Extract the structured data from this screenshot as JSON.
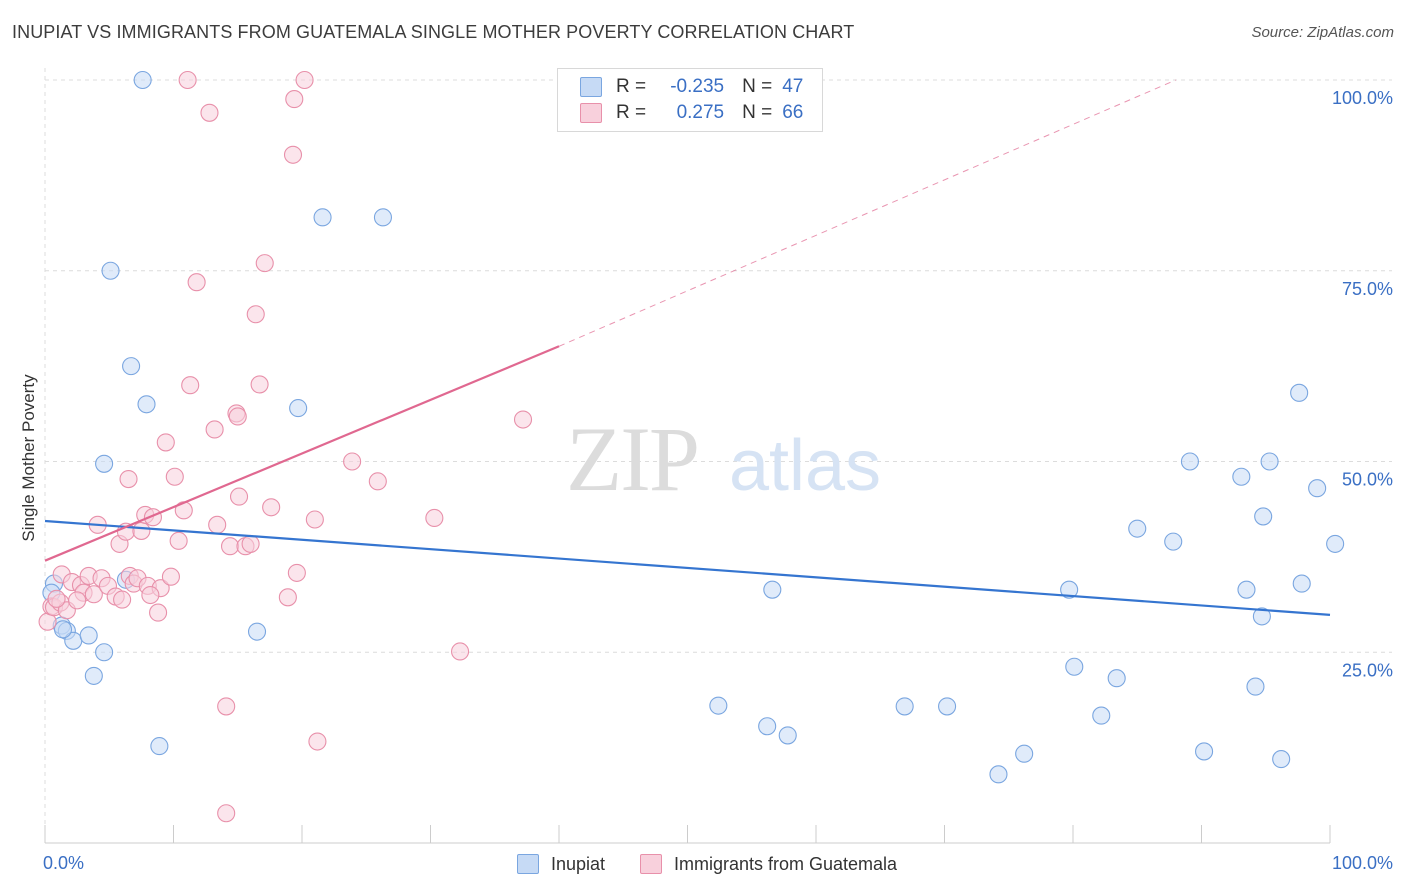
{
  "title": "INUPIAT VS IMMIGRANTS FROM GUATEMALA SINGLE MOTHER POVERTY CORRELATION CHART",
  "source": "Source: ZipAtlas.com",
  "watermark": {
    "zip": "ZIP",
    "atlas": "atlas"
  },
  "colors": {
    "inupiat_fill": "#c6daf5",
    "inupiat_stroke": "#7aa6e0",
    "inupiat_line": "#3575d0",
    "guatemala_fill": "#f8d0dc",
    "guatemala_stroke": "#e890aa",
    "guatemala_line": "#e06890",
    "axis_label": "#3a6fc4",
    "grid": "#dcdcdc"
  },
  "legend": {
    "rows": [
      {
        "r_label": "R =",
        "r_value": "-0.235",
        "n_label": "N =",
        "n_value": "47"
      },
      {
        "r_label": "R =",
        "r_value": "0.275",
        "n_label": "N =",
        "n_value": "66"
      }
    ]
  },
  "bottom_legend": [
    "Inupiat",
    "Immigrants from Guatemala"
  ],
  "chart_data": {
    "type": "scatter",
    "xlabel": "",
    "ylabel": "Single Mother Poverty",
    "xlim": [
      0,
      100
    ],
    "ylim": [
      0,
      100
    ],
    "x_tick_labels": [
      {
        "value": 0,
        "label": "0.0%"
      },
      {
        "value": 100,
        "label": "100.0%"
      }
    ],
    "y_tick_labels": [
      {
        "value": 25,
        "label": "25.0%"
      },
      {
        "value": 50,
        "label": "50.0%"
      },
      {
        "value": 75,
        "label": "75.0%"
      },
      {
        "value": 100,
        "label": "100.0%"
      }
    ],
    "grid": true,
    "series": [
      {
        "name": "Inupiat",
        "points": [
          [
            0.7,
            34
          ],
          [
            0.5,
            32.8
          ],
          [
            1.3,
            28.5
          ],
          [
            1.7,
            27.8
          ],
          [
            2.2,
            26.5
          ],
          [
            3.4,
            27.2
          ],
          [
            3.8,
            21.9
          ],
          [
            4.6,
            25
          ],
          [
            4.6,
            49.7
          ],
          [
            5.1,
            75
          ],
          [
            6.3,
            34.5
          ],
          [
            6.7,
            62.5
          ],
          [
            7.6,
            100
          ],
          [
            7.9,
            57.5
          ],
          [
            8.9,
            12.7
          ],
          [
            16.5,
            27.7
          ],
          [
            19.7,
            57
          ],
          [
            21.6,
            82
          ],
          [
            26.3,
            82
          ],
          [
            52.4,
            18
          ],
          [
            56.2,
            15.3
          ],
          [
            57.8,
            14.1
          ],
          [
            56.6,
            33.2
          ],
          [
            66.9,
            17.9
          ],
          [
            70.2,
            17.9
          ],
          [
            74.2,
            9
          ],
          [
            76.2,
            11.7
          ],
          [
            79.7,
            33.2
          ],
          [
            80.1,
            23.1
          ],
          [
            82.2,
            16.7
          ],
          [
            83.4,
            21.6
          ],
          [
            85,
            41.2
          ],
          [
            87.8,
            39.5
          ],
          [
            89.1,
            50
          ],
          [
            90.2,
            12
          ],
          [
            93.1,
            48
          ],
          [
            93.5,
            33.2
          ],
          [
            94.2,
            20.5
          ],
          [
            94.7,
            29.7
          ],
          [
            94.8,
            42.8
          ],
          [
            95.3,
            50
          ],
          [
            96.2,
            11
          ],
          [
            97.6,
            59
          ],
          [
            97.8,
            34
          ],
          [
            99,
            46.5
          ],
          [
            100.4,
            39.2
          ],
          [
            1.4,
            28
          ]
        ]
      },
      {
        "name": "Immigrants from Guatemala",
        "points": [
          [
            0.2,
            29
          ],
          [
            0.5,
            31
          ],
          [
            0.7,
            30.9
          ],
          [
            1.2,
            31.5
          ],
          [
            1.3,
            35.2
          ],
          [
            1.7,
            30.5
          ],
          [
            2.1,
            34.2
          ],
          [
            2.8,
            33.8
          ],
          [
            3,
            32.8
          ],
          [
            3.4,
            35
          ],
          [
            3.8,
            32.6
          ],
          [
            4.1,
            41.7
          ],
          [
            4.4,
            34.7
          ],
          [
            4.9,
            33.7
          ],
          [
            5.5,
            32.3
          ],
          [
            5.8,
            39.2
          ],
          [
            6,
            31.9
          ],
          [
            6.3,
            40.8
          ],
          [
            6.5,
            47.7
          ],
          [
            6.6,
            35
          ],
          [
            6.9,
            34
          ],
          [
            7.2,
            34.7
          ],
          [
            7.5,
            40.9
          ],
          [
            7.8,
            43
          ],
          [
            8,
            33.7
          ],
          [
            8.4,
            42.7
          ],
          [
            8.8,
            30.2
          ],
          [
            9,
            33.4
          ],
          [
            9.4,
            52.5
          ],
          [
            9.8,
            34.9
          ],
          [
            10.1,
            48
          ],
          [
            10.4,
            39.6
          ],
          [
            10.8,
            43.6
          ],
          [
            11.1,
            100
          ],
          [
            11.3,
            60
          ],
          [
            11.8,
            73.5
          ],
          [
            12.8,
            95.7
          ],
          [
            13.2,
            54.2
          ],
          [
            13.4,
            41.7
          ],
          [
            14.1,
            17.9
          ],
          [
            14.1,
            3.9
          ],
          [
            14.4,
            38.9
          ],
          [
            14.9,
            56.3
          ],
          [
            15,
            55.9
          ],
          [
            15.1,
            45.4
          ],
          [
            15.6,
            38.9
          ],
          [
            16,
            39.2
          ],
          [
            16.4,
            69.3
          ],
          [
            16.7,
            60.1
          ],
          [
            17.1,
            76
          ],
          [
            17.6,
            44
          ],
          [
            18.9,
            32.2
          ],
          [
            19.3,
            90.2
          ],
          [
            19.4,
            97.5
          ],
          [
            19.6,
            35.4
          ],
          [
            20.2,
            100
          ],
          [
            21,
            42.4
          ],
          [
            21.2,
            13.3
          ],
          [
            23.9,
            50
          ],
          [
            25.9,
            47.4
          ],
          [
            30.3,
            42.6
          ],
          [
            32.3,
            25.1
          ],
          [
            37.2,
            55.5
          ],
          [
            0.9,
            32
          ],
          [
            2.5,
            31.8
          ],
          [
            8.2,
            32.5
          ]
        ]
      }
    ],
    "trend_lines": [
      {
        "series": "Inupiat",
        "x": [
          0,
          100
        ],
        "y": [
          42.2,
          29.9
        ]
      },
      {
        "series": "Immigrants from Guatemala",
        "solid_x": [
          0,
          40
        ],
        "solid_y": [
          37,
          65.1
        ],
        "dashed_x": [
          40,
          88
        ],
        "dashed_y": [
          65.1,
          100
        ]
      }
    ]
  }
}
